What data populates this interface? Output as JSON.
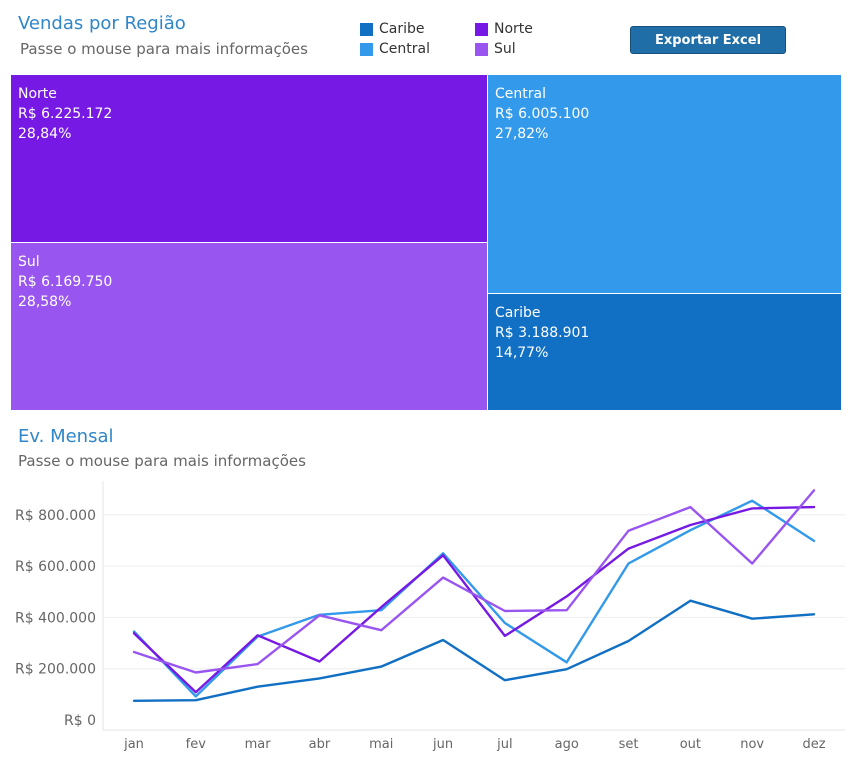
{
  "treemap": {
    "title": "Vendas por Região",
    "subtitle": "Passe o mouse para mais informações",
    "export_label": "Exportar Excel",
    "legend": [
      {
        "name": "Caribe",
        "color": "#1170c4"
      },
      {
        "name": "Central",
        "color": "#3399ea"
      },
      {
        "name": "Norte",
        "color": "#7719e4"
      },
      {
        "name": "Sul",
        "color": "#9955f0"
      }
    ],
    "tiles": {
      "norte": {
        "name": "Norte",
        "value": "R$ 6.225.172",
        "pct": "28,84%"
      },
      "sul": {
        "name": "Sul",
        "value": "R$ 6.169.750",
        "pct": "28,58%"
      },
      "central": {
        "name": "Central",
        "value": "R$ 6.005.100",
        "pct": "27,82%"
      },
      "caribe": {
        "name": "Caribe",
        "value": "R$ 3.188.901",
        "pct": "14,77%"
      }
    }
  },
  "line": {
    "title": "Ev. Mensal",
    "subtitle": "Passe o mouse para mais informações"
  },
  "chart_data": {
    "type": "line",
    "title": "Ev. Mensal",
    "categories": [
      "jan",
      "fev",
      "mar",
      "abr",
      "mai",
      "jun",
      "jul",
      "ago",
      "set",
      "out",
      "nov",
      "dez"
    ],
    "ylim": [
      0,
      920000
    ],
    "yticks": [
      0,
      200000,
      400000,
      600000,
      800000
    ],
    "ytick_labels": [
      "R$ 0",
      "R$ 200.000",
      "R$ 400.000",
      "R$ 600.000",
      "R$ 800.000"
    ],
    "grid": true,
    "series": [
      {
        "name": "Caribe",
        "color": "#1170c4",
        "values": [
          75000,
          77000,
          130000,
          162000,
          208000,
          312000,
          155000,
          198000,
          308000,
          465000,
          395000,
          412000
        ]
      },
      {
        "name": "Central",
        "color": "#3399ea",
        "values": [
          345000,
          92000,
          325000,
          410000,
          428000,
          650000,
          378000,
          225000,
          610000,
          740000,
          855000,
          698000
        ]
      },
      {
        "name": "Norte",
        "color": "#7719e4",
        "values": [
          338000,
          108000,
          330000,
          228000,
          440000,
          642000,
          328000,
          482000,
          668000,
          760000,
          825000,
          830000
        ]
      },
      {
        "name": "Sul",
        "color": "#9955f0",
        "values": [
          265000,
          185000,
          218000,
          408000,
          350000,
          555000,
          425000,
          428000,
          738000,
          830000,
          610000,
          895000
        ]
      }
    ]
  }
}
